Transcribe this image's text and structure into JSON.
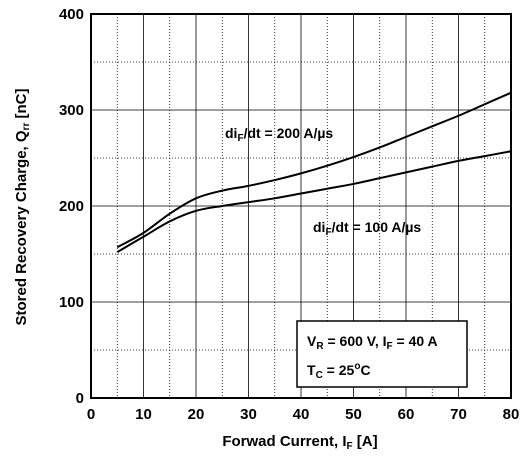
{
  "chart_data": {
    "type": "line",
    "title": "",
    "xlabel": {
      "main": "Forwad Current, I",
      "sub": "F",
      "unit": " [A]"
    },
    "ylabel": {
      "main": "Stored Recovery Charge, Q",
      "sub": "rr",
      "unit": " [nC]"
    },
    "xlim": [
      0,
      80
    ],
    "ylim": [
      0,
      400
    ],
    "xticks": [
      0,
      10,
      20,
      30,
      40,
      50,
      60,
      70,
      80
    ],
    "yticks": [
      0,
      100,
      200,
      300,
      400
    ],
    "grid": {
      "major": true,
      "minor_dotted": true
    },
    "series": [
      {
        "label_parts": [
          "di",
          "F",
          "/dt = 200 A/µs"
        ],
        "x": [
          5,
          10,
          15,
          20,
          25,
          30,
          35,
          40,
          45,
          50,
          55,
          60,
          65,
          70,
          75,
          80
        ],
        "y": [
          157,
          172,
          192,
          208,
          216,
          221,
          227,
          234,
          242,
          251,
          261,
          272,
          283,
          294,
          306,
          318
        ],
        "color": "#000000"
      },
      {
        "label_parts": [
          "di",
          "F",
          "/dt = 100 A/µs"
        ],
        "x": [
          5,
          10,
          15,
          20,
          25,
          30,
          35,
          40,
          45,
          50,
          55,
          60,
          65,
          70,
          75,
          80
        ],
        "y": [
          152,
          168,
          184,
          195,
          200,
          204,
          208,
          213,
          218,
          223,
          229,
          235,
          241,
          247,
          252,
          257
        ],
        "color": "#000000"
      }
    ],
    "annotation": {
      "line1": {
        "a": "V",
        "a_sub": "R",
        "b": " = 600 V, I",
        "b_sub": "F",
        "c": " = 40 A"
      },
      "line2": {
        "a": "T",
        "a_sub": "C",
        "b": " = 25",
        "sup": "o",
        "c": "C"
      }
    }
  }
}
